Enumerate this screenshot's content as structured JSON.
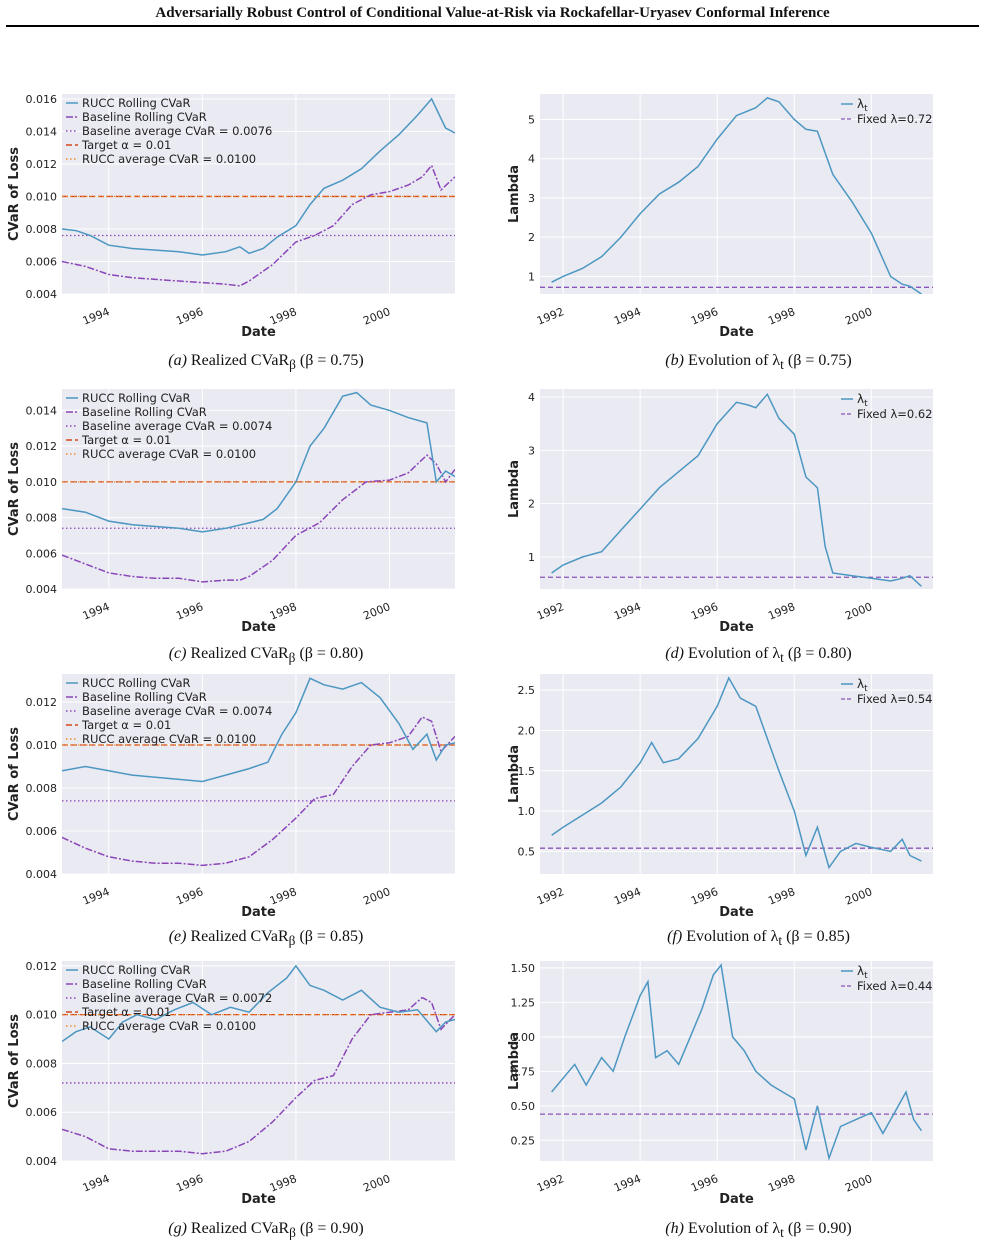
{
  "page_title": "Adversarially Robust Control of Conditional Value-at-Risk via Rockafellar-Uryasev Conformal Inference",
  "colors": {
    "rucc": "#4c97c2",
    "baseline": "#8a45b8",
    "target": "#d8461c",
    "rucc_avg": "#f08a24",
    "lambda": "#4c97c2",
    "fixed_lambda": "#8a55b8",
    "plot_bg": "#eaeaf2"
  },
  "chart_data": [
    {
      "id": "a",
      "type": "line",
      "caption": {
        "tag": "(a)",
        "pre": "Realized CVaR",
        "sub": "β",
        "post": " (β = 0.75)"
      },
      "xlabel": "Date",
      "ylabel": "CVaR of Loss",
      "xlim": [
        1993.0,
        2001.4
      ],
      "ylim": [
        0.004,
        0.0163
      ],
      "x_ticks": [
        1994,
        1996,
        1998,
        2000
      ],
      "y_ticks": [
        0.004,
        0.006,
        0.008,
        0.01,
        0.012,
        0.014,
        0.016
      ],
      "y_tick_labels": [
        "0.004",
        "0.006",
        "0.008",
        "0.010",
        "0.012",
        "0.014",
        "0.016"
      ],
      "legend": [
        "RUCC Rolling CVaR",
        "Baseline Rolling CVaR",
        "Baseline average CVaR = 0.0076",
        "Target α = 0.01",
        "RUCC average CVaR = 0.0100"
      ],
      "baseline_avg": 0.0076,
      "target": 0.01,
      "rucc_avg": 0.01,
      "series": [
        {
          "name": "RUCC Rolling CVaR",
          "x": [
            1993.0,
            1993.3,
            1993.6,
            1994.0,
            1994.5,
            1995.0,
            1995.5,
            1996.0,
            1996.5,
            1996.8,
            1997.0,
            1997.3,
            1997.6,
            1998.0,
            1998.3,
            1998.6,
            1999.0,
            1999.4,
            1999.8,
            2000.2,
            2000.6,
            2000.9,
            2001.2,
            2001.4
          ],
          "y": [
            0.008,
            0.0079,
            0.0076,
            0.007,
            0.0068,
            0.0067,
            0.0066,
            0.0064,
            0.0066,
            0.0069,
            0.0065,
            0.0068,
            0.0075,
            0.0082,
            0.0095,
            0.0105,
            0.011,
            0.0117,
            0.0128,
            0.0138,
            0.015,
            0.016,
            0.0142,
            0.0139
          ]
        },
        {
          "name": "Baseline Rolling CVaR",
          "x": [
            1993.0,
            1993.5,
            1994.0,
            1994.5,
            1995.0,
            1995.5,
            1996.0,
            1996.5,
            1996.8,
            1997.0,
            1997.5,
            1998.0,
            1998.4,
            1998.8,
            1999.2,
            1999.6,
            2000.0,
            2000.4,
            2000.7,
            2000.9,
            2001.1,
            2001.4
          ],
          "y": [
            0.006,
            0.0057,
            0.0052,
            0.005,
            0.0049,
            0.0048,
            0.0047,
            0.0046,
            0.0045,
            0.0048,
            0.0058,
            0.0072,
            0.0076,
            0.0082,
            0.0095,
            0.0101,
            0.0103,
            0.0107,
            0.0112,
            0.0119,
            0.0104,
            0.0112
          ]
        }
      ]
    },
    {
      "id": "b",
      "type": "line",
      "caption": {
        "tag": "(b)",
        "pre": "Evolution of λ",
        "sub": "t",
        "post": " (β = 0.75)"
      },
      "xlabel": "Date",
      "ylabel": "Lambda",
      "xlim": [
        1991.4,
        2001.6
      ],
      "ylim": [
        0.55,
        5.65
      ],
      "x_ticks": [
        1992,
        1994,
        1996,
        1998,
        2000
      ],
      "y_ticks": [
        1,
        2,
        3,
        4,
        5
      ],
      "y_tick_labels": [
        "1",
        "2",
        "3",
        "4",
        "5"
      ],
      "legend": [
        "λt",
        "Fixed λ=0.72"
      ],
      "fixed_lambda": 0.72,
      "series": [
        {
          "name": "λt",
          "x": [
            1991.7,
            1992.0,
            1992.5,
            1993.0,
            1993.5,
            1994.0,
            1994.5,
            1995.0,
            1995.5,
            1996.0,
            1996.5,
            1997.0,
            1997.3,
            1997.6,
            1998.0,
            1998.3,
            1998.6,
            1999.0,
            1999.5,
            2000.0,
            2000.5,
            2000.8,
            2001.0,
            2001.3
          ],
          "y": [
            0.85,
            1.0,
            1.2,
            1.5,
            2.0,
            2.6,
            3.1,
            3.4,
            3.8,
            4.5,
            5.1,
            5.3,
            5.55,
            5.45,
            5.0,
            4.75,
            4.7,
            3.6,
            2.9,
            2.1,
            1.0,
            0.8,
            0.75,
            0.55
          ]
        }
      ]
    },
    {
      "id": "c",
      "type": "line",
      "caption": {
        "tag": "(c)",
        "pre": "Realized CVaR",
        "sub": "β",
        "post": " (β = 0.80)"
      },
      "xlabel": "Date",
      "ylabel": "CVaR of Loss",
      "xlim": [
        1993.0,
        2001.4
      ],
      "ylim": [
        0.004,
        0.0152
      ],
      "x_ticks": [
        1994,
        1996,
        1998,
        2000
      ],
      "y_ticks": [
        0.004,
        0.006,
        0.008,
        0.01,
        0.012,
        0.014
      ],
      "y_tick_labels": [
        "0.004",
        "0.006",
        "0.008",
        "0.010",
        "0.012",
        "0.014"
      ],
      "legend": [
        "RUCC Rolling CVaR",
        "Baseline Rolling CVaR",
        "Baseline average CVaR = 0.0074",
        "Target α = 0.01",
        "RUCC average CVaR = 0.0100"
      ],
      "baseline_avg": 0.0074,
      "target": 0.01,
      "rucc_avg": 0.01,
      "series": [
        {
          "name": "RUCC Rolling CVaR",
          "x": [
            1993.0,
            1993.5,
            1994.0,
            1994.5,
            1995.0,
            1995.5,
            1996.0,
            1996.5,
            1997.0,
            1997.3,
            1997.6,
            1998.0,
            1998.3,
            1998.6,
            1999.0,
            1999.3,
            1999.6,
            2000.0,
            2000.4,
            2000.8,
            2001.0,
            2001.2,
            2001.4
          ],
          "y": [
            0.0085,
            0.0083,
            0.0078,
            0.0076,
            0.0075,
            0.0074,
            0.0072,
            0.0074,
            0.0077,
            0.0079,
            0.0085,
            0.01,
            0.012,
            0.013,
            0.0148,
            0.015,
            0.0143,
            0.014,
            0.0136,
            0.0133,
            0.01,
            0.0106,
            0.0103
          ]
        },
        {
          "name": "Baseline Rolling CVaR",
          "x": [
            1993.0,
            1993.5,
            1994.0,
            1994.5,
            1995.0,
            1995.5,
            1996.0,
            1996.5,
            1996.8,
            1997.0,
            1997.5,
            1998.0,
            1998.5,
            1999.0,
            1999.5,
            2000.0,
            2000.4,
            2000.8,
            2001.0,
            2001.2,
            2001.4
          ],
          "y": [
            0.0059,
            0.0054,
            0.0049,
            0.0047,
            0.0046,
            0.0046,
            0.0044,
            0.0045,
            0.0045,
            0.0047,
            0.0056,
            0.007,
            0.0077,
            0.009,
            0.01,
            0.0101,
            0.0105,
            0.0115,
            0.011,
            0.01,
            0.0107
          ]
        }
      ]
    },
    {
      "id": "d",
      "type": "line",
      "caption": {
        "tag": "(d)",
        "pre": "Evolution of λ",
        "sub": "t",
        "post": " (β = 0.80)"
      },
      "xlabel": "Date",
      "ylabel": "Lambda",
      "xlim": [
        1991.4,
        2001.6
      ],
      "ylim": [
        0.4,
        4.15
      ],
      "x_ticks": [
        1992,
        1994,
        1996,
        1998,
        2000
      ],
      "y_ticks": [
        1,
        2,
        3,
        4
      ],
      "y_tick_labels": [
        "1",
        "2",
        "3",
        "4"
      ],
      "legend": [
        "λt",
        "Fixed λ=0.62"
      ],
      "fixed_lambda": 0.62,
      "series": [
        {
          "name": "λt",
          "x": [
            1991.7,
            1992.0,
            1992.5,
            1993.0,
            1993.5,
            1994.0,
            1994.5,
            1995.0,
            1995.5,
            1996.0,
            1996.5,
            1996.8,
            1997.0,
            1997.3,
            1997.6,
            1998.0,
            1998.3,
            1998.6,
            1998.8,
            1999.0,
            1999.5,
            2000.0,
            2000.5,
            2000.8,
            2001.0,
            2001.3
          ],
          "y": [
            0.7,
            0.85,
            1.0,
            1.1,
            1.5,
            1.9,
            2.3,
            2.6,
            2.9,
            3.5,
            3.9,
            3.85,
            3.8,
            4.05,
            3.6,
            3.3,
            2.5,
            2.3,
            1.2,
            0.7,
            0.65,
            0.6,
            0.55,
            0.6,
            0.65,
            0.45
          ]
        }
      ]
    },
    {
      "id": "e",
      "type": "line",
      "caption": {
        "tag": "(e)",
        "pre": "Realized CVaR",
        "sub": "β",
        "post": " (β = 0.85)"
      },
      "xlabel": "Date",
      "ylabel": "CVaR of Loss",
      "xlim": [
        1993.0,
        2001.4
      ],
      "ylim": [
        0.004,
        0.0133
      ],
      "x_ticks": [
        1994,
        1996,
        1998,
        2000
      ],
      "y_ticks": [
        0.004,
        0.006,
        0.008,
        0.01,
        0.012
      ],
      "y_tick_labels": [
        "0.004",
        "0.006",
        "0.008",
        "0.010",
        "0.012"
      ],
      "legend": [
        "RUCC Rolling CVaR",
        "Baseline Rolling CVaR",
        "Baseline average CVaR = 0.0074",
        "Target α = 0.01",
        "RUCC average CVaR = 0.0100"
      ],
      "baseline_avg": 0.0074,
      "target": 0.01,
      "rucc_avg": 0.01,
      "series": [
        {
          "name": "RUCC Rolling CVaR",
          "x": [
            1993.0,
            1993.5,
            1994.0,
            1994.5,
            1995.0,
            1995.5,
            1996.0,
            1996.5,
            1997.0,
            1997.4,
            1997.7,
            1998.0,
            1998.3,
            1998.6,
            1999.0,
            1999.4,
            1999.8,
            2000.2,
            2000.5,
            2000.8,
            2001.0,
            2001.2,
            2001.4
          ],
          "y": [
            0.0088,
            0.009,
            0.0088,
            0.0086,
            0.0085,
            0.0084,
            0.0083,
            0.0086,
            0.0089,
            0.0092,
            0.0105,
            0.0115,
            0.0131,
            0.0128,
            0.0126,
            0.0129,
            0.0122,
            0.011,
            0.0098,
            0.0105,
            0.0093,
            0.01,
            0.0101
          ]
        },
        {
          "name": "Baseline Rolling CVaR",
          "x": [
            1993.0,
            1993.5,
            1994.0,
            1994.5,
            1995.0,
            1995.5,
            1996.0,
            1996.5,
            1997.0,
            1997.5,
            1998.0,
            1998.4,
            1998.8,
            1999.2,
            1999.6,
            2000.0,
            2000.4,
            2000.7,
            2000.9,
            2001.1,
            2001.4
          ],
          "y": [
            0.0057,
            0.0052,
            0.0048,
            0.0046,
            0.0045,
            0.0045,
            0.0044,
            0.0045,
            0.0048,
            0.0056,
            0.0066,
            0.0075,
            0.0077,
            0.009,
            0.01,
            0.0101,
            0.0104,
            0.0113,
            0.0111,
            0.0097,
            0.0104
          ]
        }
      ]
    },
    {
      "id": "f",
      "type": "line",
      "caption": {
        "tag": "(f)",
        "pre": "Evolution of λ",
        "sub": "t",
        "post": " (β = 0.85)"
      },
      "xlabel": "Date",
      "ylabel": "Lambda",
      "xlim": [
        1991.4,
        2001.6
      ],
      "ylim": [
        0.22,
        2.7
      ],
      "x_ticks": [
        1992,
        1994,
        1996,
        1998,
        2000
      ],
      "y_ticks": [
        0.5,
        1.0,
        1.5,
        2.0,
        2.5
      ],
      "y_tick_labels": [
        "0.5",
        "1.0",
        "1.5",
        "2.0",
        "2.5"
      ],
      "legend": [
        "λt",
        "Fixed λ=0.54"
      ],
      "fixed_lambda": 0.54,
      "series": [
        {
          "name": "λt",
          "x": [
            1991.7,
            1992.0,
            1992.5,
            1993.0,
            1993.5,
            1994.0,
            1994.3,
            1994.6,
            1995.0,
            1995.5,
            1996.0,
            1996.3,
            1996.6,
            1997.0,
            1997.3,
            1997.6,
            1998.0,
            1998.3,
            1998.6,
            1998.9,
            1999.2,
            1999.6,
            2000.0,
            2000.5,
            2000.8,
            2001.0,
            2001.3
          ],
          "y": [
            0.7,
            0.8,
            0.95,
            1.1,
            1.3,
            1.6,
            1.85,
            1.6,
            1.65,
            1.9,
            2.3,
            2.65,
            2.4,
            2.3,
            1.9,
            1.5,
            1.0,
            0.45,
            0.8,
            0.3,
            0.5,
            0.6,
            0.55,
            0.5,
            0.65,
            0.45,
            0.38
          ]
        }
      ]
    },
    {
      "id": "g",
      "type": "line",
      "caption": {
        "tag": "(g)",
        "pre": "Realized CVaR",
        "sub": "β",
        "post": " (β = 0.90)"
      },
      "xlabel": "Date",
      "ylabel": "CVaR of Loss",
      "xlim": [
        1993.0,
        2001.4
      ],
      "ylim": [
        0.004,
        0.0122
      ],
      "x_ticks": [
        1994,
        1996,
        1998,
        2000
      ],
      "y_ticks": [
        0.004,
        0.006,
        0.008,
        0.01,
        0.012
      ],
      "y_tick_labels": [
        "0.004",
        "0.006",
        "0.008",
        "0.010",
        "0.012"
      ],
      "legend": [
        "RUCC Rolling CVaR",
        "Baseline Rolling CVaR",
        "Baseline average CVaR = 0.0072",
        "Target α = 0.01",
        "RUCC average CVaR = 0.0100"
      ],
      "baseline_avg": 0.0072,
      "target": 0.01,
      "rucc_avg": 0.01,
      "series": [
        {
          "name": "RUCC Rolling CVaR",
          "x": [
            1993.0,
            1993.3,
            1993.6,
            1994.0,
            1994.3,
            1994.6,
            1995.0,
            1995.4,
            1995.8,
            1996.2,
            1996.6,
            1997.0,
            1997.4,
            1997.8,
            1998.0,
            1998.3,
            1998.6,
            1999.0,
            1999.4,
            1999.8,
            2000.2,
            2000.6,
            2001.0,
            2001.2,
            2001.4
          ],
          "y": [
            0.0089,
            0.0093,
            0.0095,
            0.009,
            0.0097,
            0.01,
            0.0098,
            0.0102,
            0.0105,
            0.01,
            0.0103,
            0.0101,
            0.0109,
            0.0115,
            0.012,
            0.0112,
            0.011,
            0.0106,
            0.011,
            0.0103,
            0.0101,
            0.0102,
            0.0093,
            0.0097,
            0.0098
          ]
        },
        {
          "name": "Baseline Rolling CVaR",
          "x": [
            1993.0,
            1993.5,
            1994.0,
            1994.5,
            1995.0,
            1995.5,
            1996.0,
            1996.5,
            1997.0,
            1997.5,
            1998.0,
            1998.4,
            1998.8,
            1999.2,
            1999.6,
            2000.0,
            2000.4,
            2000.7,
            2000.9,
            2001.1,
            2001.4
          ],
          "y": [
            0.0053,
            0.005,
            0.0045,
            0.0044,
            0.0044,
            0.0044,
            0.0043,
            0.0044,
            0.0048,
            0.0056,
            0.0066,
            0.0073,
            0.0075,
            0.009,
            0.01,
            0.0101,
            0.0102,
            0.0107,
            0.0105,
            0.0094,
            0.01
          ]
        }
      ]
    },
    {
      "id": "h",
      "type": "line",
      "caption": {
        "tag": "(h)",
        "pre": "Evolution of λ",
        "sub": "t",
        "post": " (β = 0.90)"
      },
      "xlabel": "Date",
      "ylabel": "Lambda",
      "xlim": [
        1991.4,
        2001.6
      ],
      "ylim": [
        0.1,
        1.55
      ],
      "x_ticks": [
        1992,
        1994,
        1996,
        1998,
        2000
      ],
      "y_ticks": [
        0.25,
        0.5,
        0.75,
        1.0,
        1.25,
        1.5
      ],
      "y_tick_labels": [
        "0.25",
        "0.50",
        "0.75",
        "1.00",
        "1.25",
        "1.50"
      ],
      "legend": [
        "λt",
        "Fixed λ=0.44"
      ],
      "fixed_lambda": 0.44,
      "series": [
        {
          "name": "λt",
          "x": [
            1991.7,
            1992.0,
            1992.3,
            1992.6,
            1993.0,
            1993.3,
            1993.6,
            1994.0,
            1994.2,
            1994.4,
            1994.7,
            1995.0,
            1995.3,
            1995.6,
            1995.9,
            1996.1,
            1996.4,
            1996.7,
            1997.0,
            1997.4,
            1997.7,
            1998.0,
            1998.3,
            1998.6,
            1998.9,
            1999.2,
            1999.6,
            2000.0,
            2000.3,
            2000.6,
            2000.9,
            2001.1,
            2001.3
          ],
          "y": [
            0.6,
            0.7,
            0.8,
            0.65,
            0.85,
            0.75,
            1.0,
            1.3,
            1.4,
            0.85,
            0.9,
            0.8,
            1.0,
            1.2,
            1.45,
            1.52,
            1.0,
            0.9,
            0.75,
            0.65,
            0.6,
            0.55,
            0.18,
            0.5,
            0.12,
            0.35,
            0.4,
            0.45,
            0.3,
            0.45,
            0.6,
            0.4,
            0.32
          ]
        }
      ]
    }
  ]
}
